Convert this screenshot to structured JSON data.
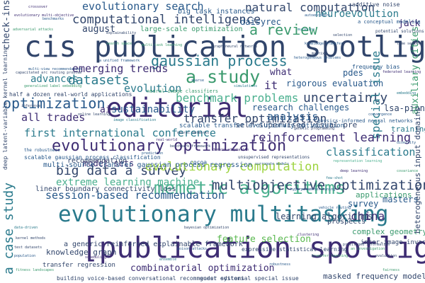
{
  "words": {
    "cis_publication_spotlight": "cis publication spotlight",
    "publication_spotlight_bracket": "[publication spotlight",
    "evolutionary_multitasking": "evolutionary multitasking",
    "editorial": "editorial",
    "a_study": "a study",
    "gaussian_process": "gaussian process",
    "memetic_algorithms": "memetic algorithms",
    "evolutionary_optimization": "evolutionary optimization",
    "multiobjective_optimization": "multiobjective optimization",
    "computational_intelligence": "computational intelligence",
    "natural_computation": "natural computation",
    "evolutionary_search": "evolutionary search",
    "a_review": "a review",
    "neuroevolution": "neuroevolution",
    "emerging_trends": "emerging trends",
    "optimization": "optimization",
    "big_data_a_survey": "big data a survey",
    "reinforcement_learning": "reinforcement learning",
    "transfer_optimization": "transfer optimization",
    "evolutionary_computation": "evolutionary computation",
    "session_based_recommendation": "session-based recommendation",
    "extreme_learning_machine": "extreme learning machine",
    "first_international_conference": "first international conference",
    "benchmark_problems": "benchmark problems",
    "uncertainty": "uncertainty",
    "combinatorial_optimization": "combinatorial optimization",
    "datasets": "datasets",
    "evolution": "evolution",
    "advances": "advances",
    "all_trades": "all trades",
    "classification": "classification",
    "analysis": "analysis",
    "feature_selection": "feature selection",
    "china": "china",
    "research_challenges": "research challenges",
    "sustainability": "sustainability",
    "august": "august",
    "jack": "jack",
    "what": "what",
    "it": "it",
    "ai": "ai",
    "special_issue": "special issue",
    "rigorous_evaluation": "rigorous evaluation",
    "masters": "masters",
    "pdes": "pdes",
    "lsa_pinn": "lsa-pinn",
    "learning_algorithms": "learning algorithms",
    "model_sets": "model sets",
    "training": "training",
    "survey": "survey",
    "applications": "applications",
    "a_case_study": "a case study",
    "check_ins": "check-ins",
    "auxiliary_cities": "auxiliary cities",
    "large_scale_optimization": "large-scale optimization",
    "daisyrec": "daisyrec",
    "big_task_instances": "big task instances",
    "knowledge_graph": "knowledge graph",
    "masked_frequency_modeling": "masked frequency modeling",
    "complex_geometry": "complex geometry",
    "self_supervised_visual_pre": "self-supervised visual pre",
    "scalable_transfer_evolutionary_optimization": "scalable transfer evolutionary optimization",
    "multi_source_transfer_gpr": "multi-source transfer gaussian process regression",
    "linear_boundary_connectivity_loss": "linear boundary connectivity loss",
    "a_generic_reinforced_explainable_framework": "a generic reinforced explainable framework",
    "transfer_regression": "transfer regression",
    "half_a_dozen": "half a dozen real-world applications",
    "deep_latent_variable": "deep latent-variable kernel learning",
    "heterogeneous_input_domains": "heterogeneous input domains",
    "inter_image_invariance": "inter-image invariance",
    "building_voice_based": "building voice-based conversational recommender systems",
    "guest_editorial_special_issue": "guest editorial special issue",
    "expressive_statistical_learning": "expressive statistical learning",
    "frequency_bias": "frequency bias",
    "additive_noise": "additive noise",
    "a_conceptual_modeling": "a conceptual modeling",
    "physics_informed_neural_networks": "physics-informed neural networks",
    "neural_image_classifiers": "neural-image classifiers",
    "scalable_gp_classification": "scalable gaussian process classification",
    "recommendation": "recommendation",
    "prospects": "prospects",
    "cocoa": "cocoa"
  },
  "tiny_words": [
    "unsupervised representations",
    "multi-view recommendation",
    "generalized label embedding",
    "capacitated arc routing problem",
    "the robustness",
    "benchmark framework",
    "adversarial attacks",
    "privileged information",
    "heterogeneous problems",
    "evolutionary multi-objective",
    "representation learning",
    "potential solutions",
    "a unified framework",
    "multi-task learning",
    "graph neural networks",
    "knowledge transfer",
    "deep learning",
    "image classification",
    "neural networks",
    "hyperparameter tuning",
    "transfer learning",
    "bayesian optimization",
    "surrogate models",
    "federated learning",
    "data-driven",
    "kernel methods",
    "population",
    "fitness landscapes",
    "genetic programming",
    "autoencoders",
    "domain adaptation",
    "few-shot",
    "online learning",
    "sparse",
    "covariance",
    "time series",
    "vehicle routing",
    "scheduling",
    "ensemble",
    "evaluation",
    "robustness",
    "fairness",
    "explainability",
    "benchmarks",
    "crossover",
    "mutation",
    "selection",
    "diversity",
    "an investigation",
    "test datasets",
    "poison attacks",
    "real-world",
    "simulations",
    "matrix",
    "convergence",
    "search space",
    "inference",
    "prediction",
    "clustering",
    "embedding"
  ]
}
